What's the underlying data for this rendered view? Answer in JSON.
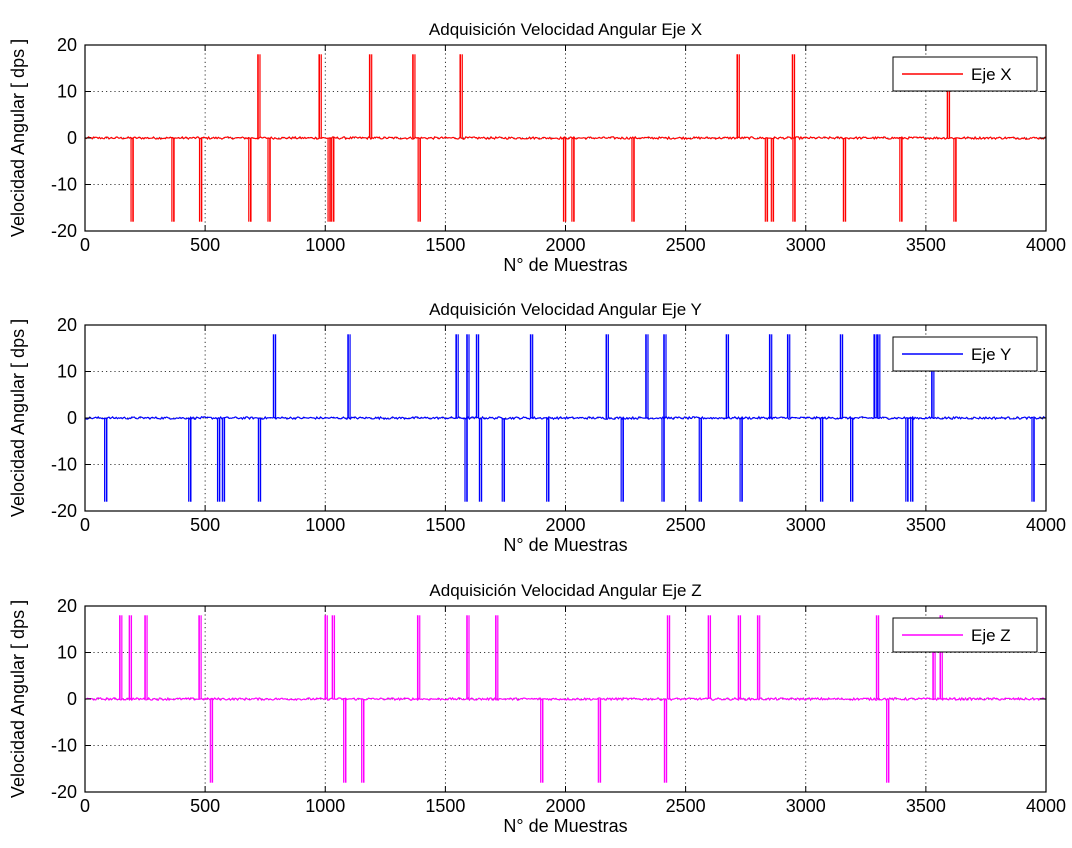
{
  "chart_data": [
    {
      "type": "line",
      "title": "Adquisición Velocidad Angular Eje X",
      "xlabel": "N° de Muestras",
      "ylabel": "Velocidad Angular [ dps ]",
      "xlim": [
        0,
        4000
      ],
      "ylim": [
        -20,
        20
      ],
      "xticks": [
        0,
        500,
        1000,
        1500,
        2000,
        2500,
        3000,
        3500,
        4000
      ],
      "yticks": [
        -20,
        -10,
        0,
        10,
        20
      ],
      "grid": true,
      "legend_position": "top-right",
      "series": [
        {
          "name": "Eje X",
          "color": "#ff0000",
          "baseline": 0,
          "positive_spikes": [
            {
              "x": 720,
              "y": 18
            },
            {
              "x": 975,
              "y": 18
            },
            {
              "x": 1185,
              "y": 18
            },
            {
              "x": 1365,
              "y": 18
            },
            {
              "x": 1562,
              "y": 18
            },
            {
              "x": 2715,
              "y": 18
            },
            {
              "x": 2945,
              "y": 18
            },
            {
              "x": 3590,
              "y": 10
            }
          ],
          "negative_spikes": [
            {
              "x": 200,
              "y": -18
            },
            {
              "x": 370,
              "y": -18
            },
            {
              "x": 485,
              "y": -18
            },
            {
              "x": 690,
              "y": -18
            },
            {
              "x": 770,
              "y": -18
            },
            {
              "x": 1020,
              "y": -18
            },
            {
              "x": 1035,
              "y": -18
            },
            {
              "x": 1395,
              "y": -18
            },
            {
              "x": 2000,
              "y": -18
            },
            {
              "x": 2035,
              "y": -18
            },
            {
              "x": 2285,
              "y": -18
            },
            {
              "x": 2840,
              "y": -18
            },
            {
              "x": 2865,
              "y": -18
            },
            {
              "x": 2955,
              "y": -18
            },
            {
              "x": 3165,
              "y": -18
            },
            {
              "x": 3400,
              "y": -18
            },
            {
              "x": 3625,
              "y": -18
            }
          ]
        }
      ]
    },
    {
      "type": "line",
      "title": "Adquisición Velocidad Angular Eje Y",
      "xlabel": "N° de Muestras",
      "ylabel": "Velocidad Angular [ dps ]",
      "xlim": [
        0,
        4000
      ],
      "ylim": [
        -20,
        20
      ],
      "xticks": [
        0,
        500,
        1000,
        1500,
        2000,
        2500,
        3000,
        3500,
        4000
      ],
      "yticks": [
        -20,
        -10,
        0,
        10,
        20
      ],
      "grid": true,
      "legend_position": "top-right",
      "series": [
        {
          "name": "Eje Y",
          "color": "#0000ff",
          "baseline": 0,
          "positive_spikes": [
            {
              "x": 785,
              "y": 18
            },
            {
              "x": 1095,
              "y": 18
            },
            {
              "x": 1545,
              "y": 18
            },
            {
              "x": 1590,
              "y": 18
            },
            {
              "x": 1630,
              "y": 18
            },
            {
              "x": 1855,
              "y": 18
            },
            {
              "x": 2170,
              "y": 18
            },
            {
              "x": 2335,
              "y": 18
            },
            {
              "x": 2410,
              "y": 18
            },
            {
              "x": 2670,
              "y": 18
            },
            {
              "x": 2850,
              "y": 18
            },
            {
              "x": 2925,
              "y": 18
            },
            {
              "x": 3145,
              "y": 18
            },
            {
              "x": 3285,
              "y": 18
            },
            {
              "x": 3300,
              "y": 18
            },
            {
              "x": 3525,
              "y": 10
            }
          ],
          "negative_spikes": [
            {
              "x": 90,
              "y": -18
            },
            {
              "x": 440,
              "y": -18
            },
            {
              "x": 560,
              "y": -18
            },
            {
              "x": 580,
              "y": -18
            },
            {
              "x": 730,
              "y": -18
            },
            {
              "x": 1590,
              "y": -18
            },
            {
              "x": 1650,
              "y": -18
            },
            {
              "x": 1745,
              "y": -18
            },
            {
              "x": 1930,
              "y": -18
            },
            {
              "x": 2240,
              "y": -18
            },
            {
              "x": 2410,
              "y": -18
            },
            {
              "x": 2565,
              "y": -18
            },
            {
              "x": 2735,
              "y": -18
            },
            {
              "x": 3070,
              "y": -18
            },
            {
              "x": 3195,
              "y": -18
            },
            {
              "x": 3425,
              "y": -18
            },
            {
              "x": 3445,
              "y": -18
            },
            {
              "x": 3950,
              "y": -18
            }
          ]
        }
      ]
    },
    {
      "type": "line",
      "title": "Adquisición Velocidad Angular Eje Z",
      "xlabel": "N° de Muestras",
      "ylabel": "Velocidad Angular [ dps ]",
      "xlim": [
        0,
        4000
      ],
      "ylim": [
        -20,
        20
      ],
      "xticks": [
        0,
        500,
        1000,
        1500,
        2000,
        2500,
        3000,
        3500,
        4000
      ],
      "yticks": [
        -20,
        -10,
        0,
        10,
        20
      ],
      "grid": true,
      "legend_position": "top-right",
      "series": [
        {
          "name": "Eje Z",
          "color": "#ff00ff",
          "baseline": 0,
          "positive_spikes": [
            {
              "x": 145,
              "y": 18
            },
            {
              "x": 185,
              "y": 18
            },
            {
              "x": 250,
              "y": 18
            },
            {
              "x": 475,
              "y": 18
            },
            {
              "x": 1000,
              "y": 18
            },
            {
              "x": 1030,
              "y": 18
            },
            {
              "x": 1385,
              "y": 18
            },
            {
              "x": 1590,
              "y": 18
            },
            {
              "x": 1710,
              "y": 18
            },
            {
              "x": 2425,
              "y": 18
            },
            {
              "x": 2595,
              "y": 18
            },
            {
              "x": 2720,
              "y": 18
            },
            {
              "x": 2800,
              "y": 18
            },
            {
              "x": 3295,
              "y": 18
            },
            {
              "x": 3530,
              "y": 10
            },
            {
              "x": 3560,
              "y": 18
            }
          ],
          "negative_spikes": [
            {
              "x": 530,
              "y": -18
            },
            {
              "x": 1085,
              "y": -18
            },
            {
              "x": 1160,
              "y": -18
            },
            {
              "x": 1905,
              "y": -18
            },
            {
              "x": 2145,
              "y": -18
            },
            {
              "x": 2420,
              "y": -18
            },
            {
              "x": 3345,
              "y": -18
            }
          ]
        }
      ]
    }
  ]
}
